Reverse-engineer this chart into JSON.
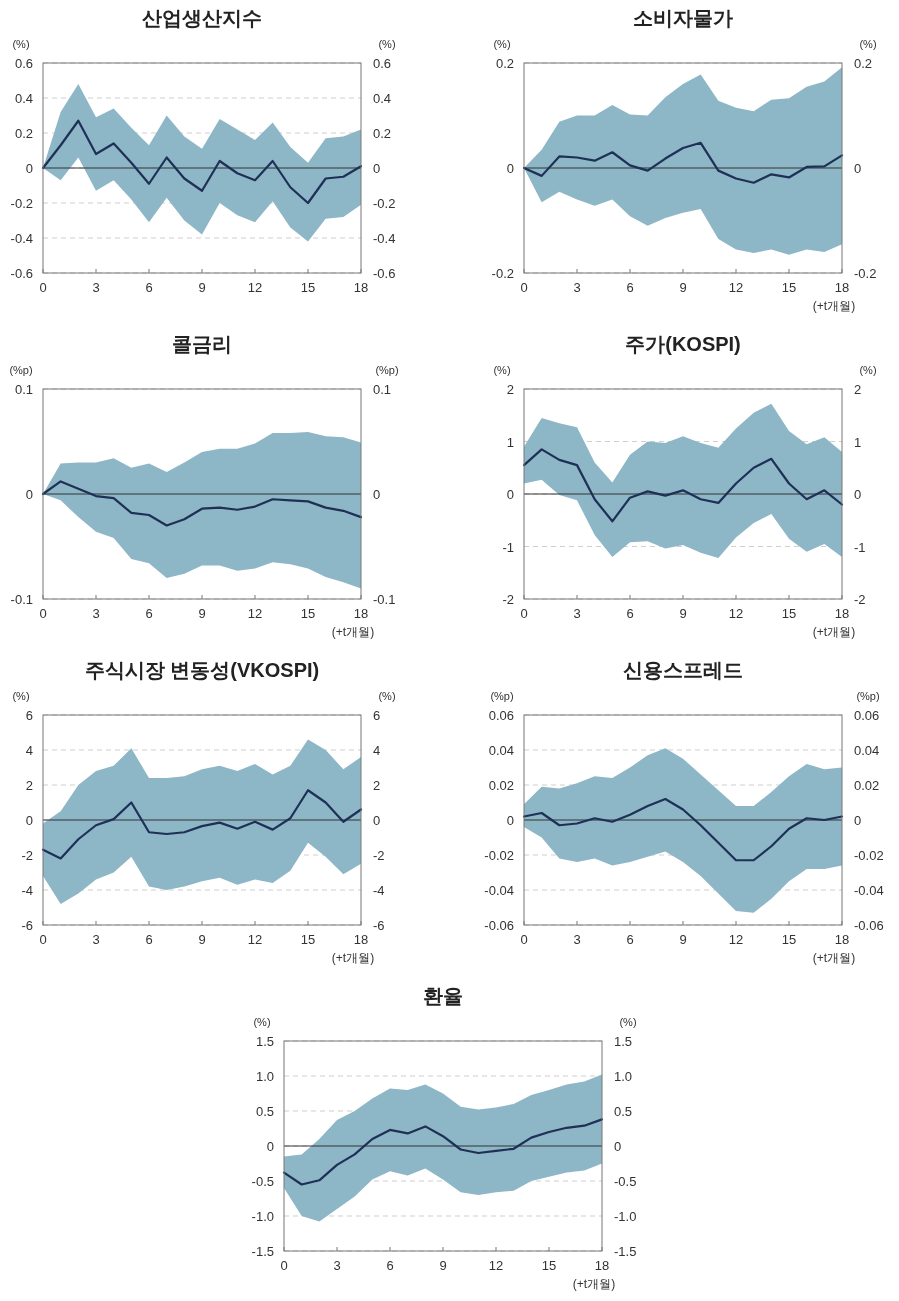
{
  "chart_data": [
    {
      "type": "line",
      "title": "산업생산지수",
      "ylabel": "(%)",
      "y2label": "(%)",
      "x": [
        0,
        1,
        2,
        3,
        4,
        5,
        6,
        7,
        8,
        9,
        10,
        11,
        12,
        13,
        14,
        15,
        16,
        17,
        18
      ],
      "xlim": [
        0,
        18
      ],
      "xticks": [
        0,
        3,
        6,
        9,
        12,
        15,
        18
      ],
      "ylim": [
        -0.6,
        0.6
      ],
      "yticks": [
        -0.6,
        -0.4,
        -0.2,
        0,
        0.2,
        0.4,
        0.6
      ],
      "y2lim": [
        -0.6,
        0.6
      ],
      "y2ticks": [
        -0.6,
        -0.4,
        -0.2,
        0,
        0.2,
        0.4,
        0.6
      ],
      "grid": "y",
      "ref_lines": [
        {
          "axis": "y",
          "value": 0
        }
      ],
      "series": [
        {
          "color": "#1f3057",
          "values": [
            0,
            0.13,
            0.27,
            0.08,
            0.14,
            0.03,
            -0.09,
            0.06,
            -0.06,
            -0.13,
            0.04,
            -0.03,
            -0.07,
            0.04,
            -0.11,
            -0.2,
            -0.06,
            -0.05,
            0.01
          ],
          "lower": [
            0,
            -0.07,
            0.06,
            -0.13,
            -0.07,
            -0.18,
            -0.31,
            -0.17,
            -0.3,
            -0.38,
            -0.2,
            -0.27,
            -0.31,
            -0.19,
            -0.34,
            -0.42,
            -0.29,
            -0.28,
            -0.21
          ],
          "upper": [
            0,
            0.32,
            0.48,
            0.29,
            0.34,
            0.23,
            0.13,
            0.3,
            0.18,
            0.11,
            0.28,
            0.22,
            0.16,
            0.26,
            0.12,
            0.03,
            0.17,
            0.18,
            0.22
          ]
        }
      ]
    },
    {
      "type": "line",
      "title": "소비자물가",
      "xlabel": "(+t개월)",
      "ylabel": "(%)",
      "y2label": "(%)",
      "x": [
        0,
        1,
        2,
        3,
        4,
        5,
        6,
        7,
        8,
        9,
        10,
        11,
        12,
        13,
        14,
        15,
        16,
        17,
        18
      ],
      "xlim": [
        0,
        18
      ],
      "xticks": [
        0,
        3,
        6,
        9,
        12,
        15,
        18
      ],
      "ylim": [
        -0.2,
        0.2
      ],
      "yticks": [
        -0.2,
        0,
        0.2
      ],
      "y2lim": [
        -0.2,
        0.2
      ],
      "y2ticks": [
        -0.2,
        0,
        0.2
      ],
      "grid": "y",
      "ref_lines": [
        {
          "axis": "y",
          "value": 0
        }
      ],
      "series": [
        {
          "color": "#1f3057",
          "values": [
            0,
            -0.015,
            0.022,
            0.02,
            0.014,
            0.03,
            0.005,
            -0.005,
            0.018,
            0.038,
            0.048,
            -0.005,
            -0.02,
            -0.028,
            -0.012,
            -0.018,
            0.002,
            0.003,
            0.024
          ],
          "lower": [
            0,
            -0.065,
            -0.045,
            -0.06,
            -0.072,
            -0.06,
            -0.092,
            -0.11,
            -0.095,
            -0.085,
            -0.078,
            -0.135,
            -0.155,
            -0.162,
            -0.155,
            -0.165,
            -0.155,
            -0.16,
            -0.145
          ],
          "upper": [
            0,
            0.035,
            0.088,
            0.1,
            0.1,
            0.12,
            0.102,
            0.1,
            0.135,
            0.16,
            0.178,
            0.128,
            0.115,
            0.108,
            0.13,
            0.133,
            0.155,
            0.165,
            0.192
          ]
        }
      ]
    },
    {
      "type": "line",
      "title": "콜금리",
      "xlabel": "(+t개월)",
      "ylabel": "(%p)",
      "y2label": "(%p)",
      "x": [
        0,
        1,
        2,
        3,
        4,
        5,
        6,
        7,
        8,
        9,
        10,
        11,
        12,
        13,
        14,
        15,
        16,
        17,
        18
      ],
      "xlim": [
        0,
        18
      ],
      "xticks": [
        0,
        3,
        6,
        9,
        12,
        15,
        18
      ],
      "ylim": [
        -0.1,
        0.1
      ],
      "yticks": [
        -0.1,
        0,
        0.1
      ],
      "y2lim": [
        -0.1,
        0.1
      ],
      "y2ticks": [
        -0.1,
        0,
        0.1
      ],
      "grid": "y",
      "ref_lines": [
        {
          "axis": "y",
          "value": 0
        }
      ],
      "series": [
        {
          "color": "#1f3057",
          "values": [
            0,
            0.012,
            0.005,
            -0.002,
            -0.004,
            -0.018,
            -0.02,
            -0.03,
            -0.024,
            -0.014,
            -0.013,
            -0.015,
            -0.012,
            -0.005,
            -0.006,
            -0.007,
            -0.013,
            -0.016,
            -0.022
          ],
          "lower": [
            0,
            -0.006,
            -0.022,
            -0.036,
            -0.042,
            -0.062,
            -0.066,
            -0.08,
            -0.076,
            -0.068,
            -0.068,
            -0.073,
            -0.071,
            -0.065,
            -0.067,
            -0.071,
            -0.079,
            -0.084,
            -0.09
          ],
          "upper": [
            0,
            0.029,
            0.03,
            0.03,
            0.034,
            0.025,
            0.029,
            0.021,
            0.03,
            0.04,
            0.043,
            0.043,
            0.048,
            0.058,
            0.058,
            0.059,
            0.055,
            0.054,
            0.049
          ]
        }
      ]
    },
    {
      "type": "line",
      "title": "주가(KOSPI)",
      "xlabel": "(+t개월)",
      "ylabel": "(%)",
      "y2label": "(%)",
      "x": [
        0,
        1,
        2,
        3,
        4,
        5,
        6,
        7,
        8,
        9,
        10,
        11,
        12,
        13,
        14,
        15,
        16,
        17,
        18
      ],
      "xlim": [
        0,
        18
      ],
      "xticks": [
        0,
        3,
        6,
        9,
        12,
        15,
        18
      ],
      "ylim": [
        -2,
        2
      ],
      "yticks": [
        -2,
        -1,
        0,
        1,
        2
      ],
      "y2lim": [
        -2,
        2
      ],
      "y2ticks": [
        -2,
        -1,
        0,
        1,
        2
      ],
      "grid": "y",
      "ref_lines": [
        {
          "axis": "y",
          "value": 0
        }
      ],
      "series": [
        {
          "color": "#1f3057",
          "values": [
            0.55,
            0.85,
            0.65,
            0.55,
            -0.1,
            -0.52,
            -0.07,
            0.05,
            -0.03,
            0.07,
            -0.1,
            -0.17,
            0.2,
            0.5,
            0.67,
            0.2,
            -0.1,
            0.07,
            -0.2
          ],
          "lower": [
            0.2,
            0.27,
            -0.02,
            -0.12,
            -0.78,
            -1.2,
            -0.92,
            -0.9,
            -1.04,
            -0.97,
            -1.12,
            -1.22,
            -0.83,
            -0.55,
            -0.38,
            -0.85,
            -1.1,
            -0.95,
            -1.2
          ],
          "upper": [
            0.9,
            1.45,
            1.35,
            1.27,
            0.6,
            0.22,
            0.75,
            1,
            0.97,
            1.1,
            0.97,
            0.88,
            1.25,
            1.55,
            1.72,
            1.2,
            0.95,
            1.08,
            0.8
          ]
        }
      ]
    },
    {
      "type": "line",
      "title": "주식시장 변동성(VKOSPI)",
      "xlabel": "(+t개월)",
      "ylabel": "(%)",
      "y2label": "(%)",
      "x": [
        0,
        1,
        2,
        3,
        4,
        5,
        6,
        7,
        8,
        9,
        10,
        11,
        12,
        13,
        14,
        15,
        16,
        17,
        18
      ],
      "xlim": [
        0,
        18
      ],
      "xticks": [
        0,
        3,
        6,
        9,
        12,
        15,
        18
      ],
      "ylim": [
        -6,
        6
      ],
      "yticks": [
        -6,
        -4,
        -2,
        0,
        2,
        4,
        6
      ],
      "y2lim": [
        -6,
        6
      ],
      "y2ticks": [
        -6,
        -4,
        -2,
        0,
        2,
        4,
        6
      ],
      "grid": "y",
      "ref_lines": [
        {
          "axis": "y",
          "value": 0
        }
      ],
      "series": [
        {
          "color": "#1f3057",
          "values": [
            -1.7,
            -2.2,
            -1.1,
            -0.3,
            0.05,
            1,
            -0.7,
            -0.8,
            -0.7,
            -0.35,
            -0.15,
            -0.5,
            -0.1,
            -0.55,
            0.1,
            1.7,
            1,
            -0.1,
            0.6
          ],
          "lower": [
            -3.2,
            -4.8,
            -4.2,
            -3.4,
            -3,
            -2.1,
            -3.8,
            -4,
            -3.8,
            -3.5,
            -3.3,
            -3.7,
            -3.4,
            -3.6,
            -2.9,
            -1.3,
            -2.1,
            -3.1,
            -2.5
          ],
          "upper": [
            -0.2,
            0.5,
            2,
            2.8,
            3.1,
            4.1,
            2.4,
            2.4,
            2.5,
            2.9,
            3.1,
            2.8,
            3.2,
            2.6,
            3.1,
            4.6,
            4,
            2.9,
            3.6
          ]
        }
      ]
    },
    {
      "type": "line",
      "title": "신용스프레드",
      "xlabel": "(+t개월)",
      "ylabel": "(%p)",
      "y2label": "(%p)",
      "x": [
        0,
        1,
        2,
        3,
        4,
        5,
        6,
        7,
        8,
        9,
        10,
        11,
        12,
        13,
        14,
        15,
        16,
        17,
        18
      ],
      "xlim": [
        0,
        18
      ],
      "xticks": [
        0,
        3,
        6,
        9,
        12,
        15,
        18
      ],
      "ylim": [
        -0.06,
        0.06
      ],
      "yticks": [
        -0.06,
        -0.04,
        -0.02,
        0,
        0.02,
        0.04,
        0.06
      ],
      "y2lim": [
        -0.06,
        0.06
      ],
      "y2ticks": [
        -0.06,
        -0.04,
        -0.02,
        0,
        0.02,
        0.04,
        0.06
      ],
      "grid": "y",
      "ref_lines": [
        {
          "axis": "y",
          "value": 0
        }
      ],
      "series": [
        {
          "color": "#1f3057",
          "values": [
            0.002,
            0.004,
            -0.003,
            -0.002,
            0.001,
            -0.001,
            0.003,
            0.008,
            0.012,
            0.006,
            -0.003,
            -0.013,
            -0.023,
            -0.023,
            -0.015,
            -0.005,
            0.001,
            0,
            0.002
          ],
          "lower": [
            -0.004,
            -0.01,
            -0.022,
            -0.024,
            -0.022,
            -0.026,
            -0.024,
            -0.021,
            -0.018,
            -0.024,
            -0.032,
            -0.042,
            -0.052,
            -0.053,
            -0.045,
            -0.035,
            -0.028,
            -0.028,
            -0.026
          ],
          "upper": [
            0.009,
            0.019,
            0.018,
            0.021,
            0.025,
            0.024,
            0.03,
            0.037,
            0.041,
            0.035,
            0.026,
            0.017,
            0.008,
            0.008,
            0.016,
            0.025,
            0.032,
            0.029,
            0.03
          ]
        }
      ]
    },
    {
      "type": "line",
      "title": "환율",
      "xlabel": "(+t개월)",
      "ylabel": "(%)",
      "y2label": "(%)",
      "x": [
        0,
        1,
        2,
        3,
        4,
        5,
        6,
        7,
        8,
        9,
        10,
        11,
        12,
        13,
        14,
        15,
        16,
        17,
        18
      ],
      "xlim": [
        0,
        18
      ],
      "xticks": [
        0,
        3,
        6,
        9,
        12,
        15,
        18
      ],
      "ylim": [
        -1.5,
        1.5
      ],
      "yticks": [
        -1.5,
        {
          "value": -1,
          "label": "-1.0"
        },
        -0.5,
        0,
        0.5,
        {
          "value": 1,
          "label": "1.0"
        },
        1.5
      ],
      "y2lim": [
        -1.5,
        1.5
      ],
      "y2ticks": [
        -1.5,
        {
          "value": -1,
          "label": "-1.0"
        },
        -0.5,
        0,
        0.5,
        {
          "value": 1,
          "label": "1.0"
        },
        1.5
      ],
      "grid": "y",
      "ref_lines": [
        {
          "axis": "y",
          "value": 0
        }
      ],
      "series": [
        {
          "color": "#1f3057",
          "values": [
            -0.38,
            -0.55,
            -0.49,
            -0.27,
            -0.12,
            0.1,
            0.23,
            0.18,
            0.28,
            0.14,
            -0.05,
            -0.1,
            -0.07,
            -0.04,
            0.12,
            0.2,
            0.26,
            0.29,
            0.38
          ],
          "lower": [
            -0.6,
            -1,
            -1.08,
            -0.9,
            -0.72,
            -0.48,
            -0.36,
            -0.42,
            -0.32,
            -0.48,
            -0.66,
            -0.7,
            -0.66,
            -0.64,
            -0.5,
            -0.44,
            -0.38,
            -0.35,
            -0.25
          ],
          "upper": [
            -0.15,
            -0.12,
            0.1,
            0.37,
            0.5,
            0.68,
            0.82,
            0.8,
            0.88,
            0.75,
            0.56,
            0.52,
            0.55,
            0.6,
            0.73,
            0.8,
            0.88,
            0.92,
            1.02
          ]
        }
      ]
    }
  ]
}
